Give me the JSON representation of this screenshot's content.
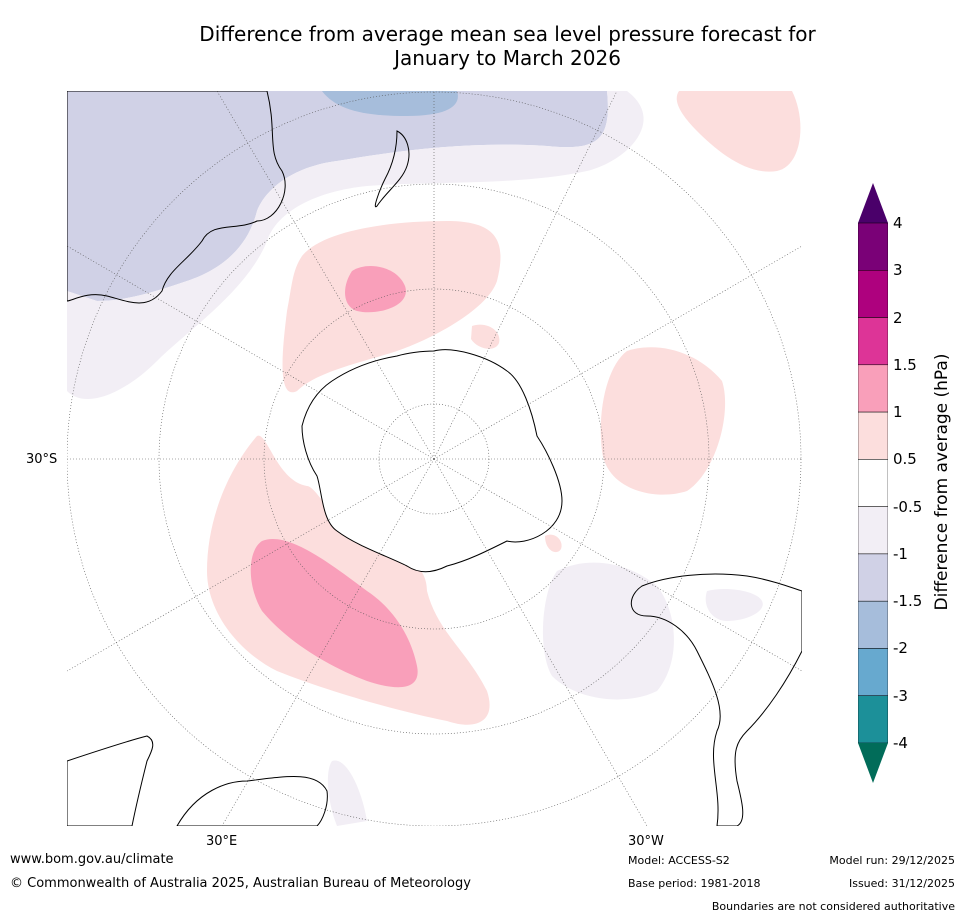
{
  "title_line1": "Difference from average mean sea level pressure forecast for",
  "title_line2": "January to March 2026",
  "map": {
    "lat_label": "30°S",
    "lon_label_left": "30°E",
    "lon_label_right": "30°W"
  },
  "legend": {
    "title": "Difference from average (hPa)",
    "ticks": [
      "4",
      "3",
      "2",
      "1.5",
      "1",
      "0.5",
      "-0.5",
      "-1",
      "-1.5",
      "-2",
      "-3",
      "-4"
    ],
    "colors": [
      "#4a006a",
      "#7a0177",
      "#ae017e",
      "#dd3497",
      "#f99fba",
      "#fcdedd",
      "#ffffff",
      "#f2eef5",
      "#d0d1e6",
      "#a6bddb",
      "#67a9cf",
      "#1c9099",
      "#016c59"
    ]
  },
  "footer": {
    "website": "www.bom.gov.au/climate",
    "copyright": "© Commonwealth of Australia 2025, Australian Bureau of Meteorology",
    "model": "Model: ACCESS-S2",
    "base_period": "Base period: 1981-2018",
    "model_run": "Model run: 29/12/2025",
    "issued": "Issued: 31/12/2025",
    "disclaimer": "Boundaries are not considered authoritative"
  }
}
